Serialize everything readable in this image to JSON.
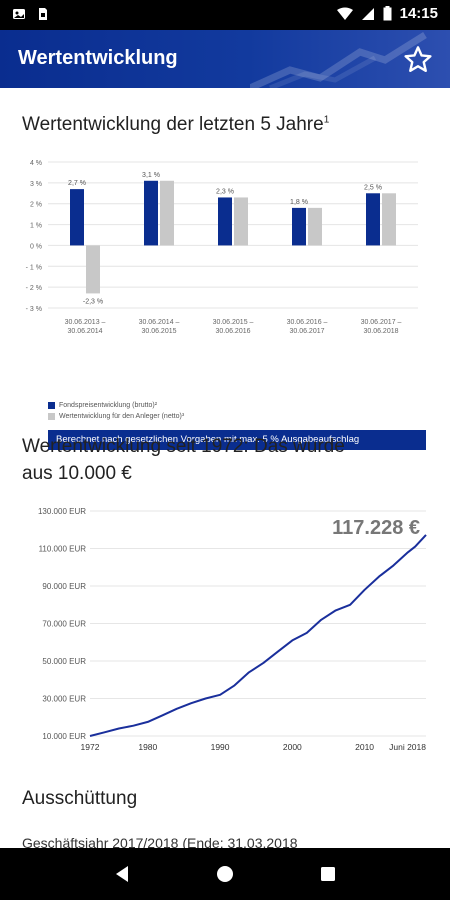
{
  "status_bar": {
    "time": "14:15"
  },
  "app_bar": {
    "title": "Wertentwicklung",
    "favorite_icon": "star-outline-icon"
  },
  "section1": {
    "title": "Wertentwicklung der letzten 5 Jahre",
    "footnote": "1"
  },
  "bar_legend": {
    "gross": "Fondspreisentwicklung (brutto)²",
    "net": "Wertentwicklung für den Anleger (netto)³"
  },
  "calc_note": "Berechnet nach gesetzlichen Vorgaben mit max. 5 % Ausgabeaufschlag",
  "section2": {
    "title_line1": "Wertentwicklung seit 1972: Das wurde",
    "title_line2": "aus 10.000 €"
  },
  "final_value": "117.228 €",
  "section3": {
    "title": "Ausschüttung",
    "subline": "Geschäftsjahr 2017/2018 (Ende: 31.03.2018"
  },
  "colors": {
    "brand": "#0a2d8f",
    "net": "#c8c8c8",
    "line": "#1a2f9c"
  },
  "chart_data": [
    {
      "type": "bar",
      "categories": [
        "30.06.2013 – 30.06.2014",
        "30.06.2014 – 30.06.2015",
        "30.06.2015 – 30.06.2016",
        "30.06.2016 – 30.06.2017",
        "30.06.2017 – 30.06.2018"
      ],
      "category_lines": [
        [
          "30.06.2013 –",
          "30.06.2014"
        ],
        [
          "30.06.2014 –",
          "30.06.2015"
        ],
        [
          "30.06.2015 –",
          "30.06.2016"
        ],
        [
          "30.06.2016 –",
          "30.06.2017"
        ],
        [
          "30.06.2017 –",
          "30.06.2018"
        ]
      ],
      "series": [
        {
          "name": "Fondspreisentwicklung (brutto)²",
          "values": [
            2.7,
            3.1,
            2.3,
            1.8,
            2.5
          ],
          "labels": [
            "2,7 %",
            "3,1 %",
            "2,3 %",
            "1,8 %",
            "2,5 %"
          ]
        },
        {
          "name": "Wertentwicklung für den Anleger (netto)³",
          "values": [
            -2.3,
            3.1,
            2.3,
            1.8,
            2.5
          ],
          "labels": [
            "-2,3 %",
            "",
            "",
            "",
            ""
          ]
        }
      ],
      "ylim": [
        -3,
        4
      ],
      "yticks": [
        4,
        3,
        2,
        1,
        0,
        -1,
        -2,
        -3
      ],
      "ytick_labels": [
        "4 %",
        "3 %",
        "2 %",
        "1 %",
        "0 %",
        "- 1 %",
        "- 2 %",
        "- 3 %"
      ],
      "grid": true
    },
    {
      "type": "line",
      "x": [
        1972,
        1974,
        1976,
        1978,
        1980,
        1982,
        1984,
        1986,
        1988,
        1990,
        1992,
        1994,
        1996,
        1998,
        2000,
        2002,
        2004,
        2006,
        2008,
        2010,
        2012,
        2014,
        2016,
        2017,
        2018.5
      ],
      "y": [
        10000,
        12000,
        14000,
        15500,
        17500,
        21000,
        24500,
        27500,
        30000,
        32000,
        37000,
        44000,
        49000,
        55000,
        61000,
        65000,
        72000,
        77000,
        80000,
        88000,
        95000,
        101000,
        108000,
        111000,
        117228
      ],
      "ylim": [
        10000,
        130000
      ],
      "yticks": [
        10000,
        30000,
        50000,
        70000,
        90000,
        110000,
        130000
      ],
      "ytick_labels": [
        "10.000 EUR",
        "30.000 EUR",
        "50.000 EUR",
        "70.000 EUR",
        "90.000 EUR",
        "110.000 EUR",
        "130.000 EUR"
      ],
      "xticks": [
        1972,
        1980,
        1990,
        2000,
        2010,
        2018.5
      ],
      "xtick_labels": [
        "1972",
        "1980",
        "1990",
        "2000",
        "2010",
        "Juni 2018"
      ],
      "grid": true
    }
  ]
}
